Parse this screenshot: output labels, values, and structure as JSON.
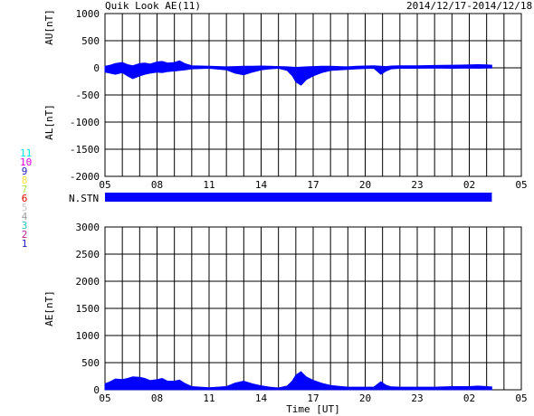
{
  "header": {
    "title": "Quik Look AE(11)",
    "date_range": "2014/12/17-2014/12/18"
  },
  "stations": {
    "labels": [
      "11",
      "10",
      "9",
      "8",
      "7",
      "6",
      "5",
      "4",
      "3",
      "2",
      "1"
    ],
    "colors": [
      "#00e5e5",
      "#e000e0",
      "#2020c0",
      "#ffe040",
      "#b0e040",
      "#e00000",
      "#c8c8c8",
      "#a0a0a0",
      "#30c0c0",
      "#c02090",
      "#2020c0"
    ]
  },
  "colors": {
    "fill": "#0000ff",
    "grid": "#000000",
    "background": "#ffffff"
  },
  "chart_data": [
    {
      "type": "area",
      "panel": "AU/AL",
      "ylabel_upper": "AU[nT]",
      "ylabel_lower": "AL[nT]",
      "ylim": [
        -2000,
        1000
      ],
      "yticks": [
        1000,
        500,
        0,
        -500,
        -1000,
        -1500,
        -2000
      ],
      "xlim": [
        5,
        29
      ],
      "xticks": [
        "05",
        "08",
        "11",
        "14",
        "17",
        "20",
        "23",
        "02",
        "05"
      ],
      "grid": true,
      "series": [
        {
          "x": [
            5.0,
            5.3,
            5.6,
            6.0,
            6.3,
            6.6,
            7.0,
            7.3,
            7.6,
            8.0,
            8.3,
            8.6,
            9.0,
            9.3,
            9.6,
            10.0,
            11.0,
            12.0,
            12.5,
            13.0,
            13.5,
            14.0,
            14.5,
            15.0,
            15.5,
            15.8,
            16.0,
            16.3,
            16.6,
            17.0,
            17.5,
            18.0,
            18.5,
            19.0,
            19.5,
            20.0,
            20.5,
            20.9,
            21.2,
            21.5,
            22.0,
            23.0,
            24.0,
            25.0,
            26.0,
            26.5,
            27.0,
            27.3
          ],
          "au": [
            30,
            50,
            80,
            100,
            60,
            40,
            80,
            90,
            70,
            110,
            120,
            90,
            100,
            130,
            80,
            40,
            30,
            20,
            25,
            30,
            30,
            35,
            30,
            25,
            20,
            15,
            10,
            15,
            20,
            25,
            30,
            30,
            25,
            20,
            30,
            35,
            40,
            30,
            25,
            35,
            40,
            40,
            45,
            50,
            55,
            60,
            55,
            50
          ],
          "al": [
            -80,
            -100,
            -120,
            -90,
            -150,
            -200,
            -150,
            -120,
            -100,
            -80,
            -90,
            -70,
            -60,
            -50,
            -40,
            -20,
            -10,
            -40,
            -100,
            -130,
            -80,
            -40,
            -20,
            -10,
            -50,
            -150,
            -260,
            -320,
            -220,
            -150,
            -90,
            -50,
            -40,
            -30,
            -20,
            -15,
            -10,
            -120,
            -60,
            -20,
            -10,
            -10,
            -5,
            -10,
            -5,
            -10,
            -5,
            -5
          ]
        }
      ]
    },
    {
      "type": "area",
      "panel": "AE",
      "ylabel": "AE[nT]",
      "xlabel": "Time [UT]",
      "ylim": [
        0,
        3000
      ],
      "yticks": [
        3000,
        2500,
        2000,
        1500,
        1000,
        500,
        0
      ],
      "xlim": [
        5,
        29
      ],
      "xticks": [
        "05",
        "08",
        "11",
        "14",
        "17",
        "20",
        "23",
        "02",
        "05"
      ],
      "grid": true,
      "series": [
        {
          "x": [
            5.0,
            5.3,
            5.6,
            6.0,
            6.3,
            6.6,
            7.0,
            7.3,
            7.6,
            8.0,
            8.3,
            8.6,
            9.0,
            9.3,
            9.6,
            10.0,
            11.0,
            12.0,
            12.5,
            13.0,
            13.5,
            14.0,
            14.5,
            15.0,
            15.5,
            15.8,
            16.0,
            16.3,
            16.6,
            17.0,
            17.5,
            18.0,
            18.5,
            19.0,
            19.5,
            20.0,
            20.5,
            20.9,
            21.2,
            21.5,
            22.0,
            23.0,
            24.0,
            25.0,
            26.0,
            26.5,
            27.0,
            27.3
          ],
          "values": [
            110,
            150,
            200,
            190,
            210,
            240,
            230,
            210,
            170,
            190,
            210,
            160,
            160,
            180,
            120,
            60,
            40,
            60,
            125,
            160,
            110,
            75,
            50,
            35,
            70,
            165,
            270,
            335,
            240,
            175,
            120,
            80,
            65,
            50,
            50,
            50,
            50,
            150,
            85,
            55,
            50,
            50,
            50,
            60,
            60,
            70,
            60,
            55
          ]
        }
      ]
    }
  ],
  "n_stn": {
    "label": "N.STN",
    "start": 5.0,
    "end": 27.3
  }
}
